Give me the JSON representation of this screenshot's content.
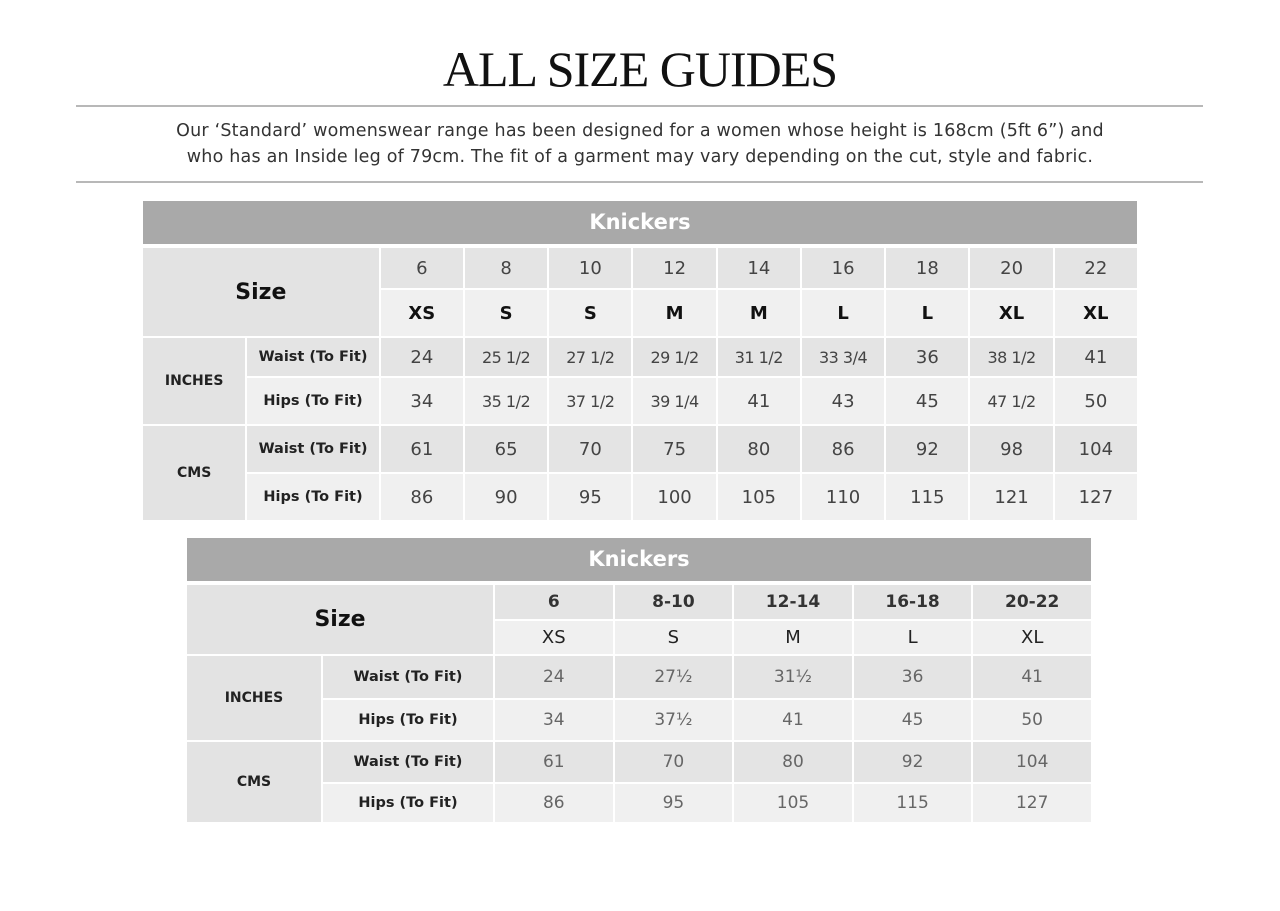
{
  "title": "ALL SIZE GUIDES",
  "intro": [
    "Our ‘Standard’ womenswear range has been designed for a women whose height is 168cm (5ft 6”) and",
    "who has an Inside leg of 79cm. The fit of a garment may vary depending on the cut, style and fabric."
  ],
  "tables": [
    {
      "title": "Knickers",
      "size_label": "Size",
      "sizes": [
        "6",
        "8",
        "10",
        "12",
        "14",
        "16",
        "18",
        "20",
        "22"
      ],
      "letters": [
        "XS",
        "S",
        "S",
        "M",
        "M",
        "L",
        "L",
        "XL",
        "XL"
      ],
      "groups": [
        {
          "name": "INCHES",
          "rows": [
            {
              "label": "Waist (To Fit)",
              "values": [
                "24",
                "25 1/2",
                "27 1/2",
                "29 1/2",
                "31 1/2",
                "33 3/4",
                "36",
                "38 1/2",
                "41"
              ]
            },
            {
              "label": "Hips (To Fit)",
              "values": [
                "34",
                "35 1/2",
                "37 1/2",
                "39 1/4",
                "41",
                "43",
                "45",
                "47 1/2",
                "50"
              ]
            }
          ]
        },
        {
          "name": "CMS",
          "rows": [
            {
              "label": "Waist (To Fit)",
              "values": [
                "61",
                "65",
                "70",
                "75",
                "80",
                "86",
                "92",
                "98",
                "104"
              ]
            },
            {
              "label": "Hips (To Fit)",
              "values": [
                "86",
                "90",
                "95",
                "100",
                "105",
                "110",
                "115",
                "121",
                "127"
              ]
            }
          ]
        }
      ]
    },
    {
      "title": "Knickers",
      "size_label": "Size",
      "sizes": [
        "6",
        "8-10",
        "12-14",
        "16-18",
        "20-22"
      ],
      "letters": [
        "XS",
        "S",
        "M",
        "L",
        "XL"
      ],
      "groups": [
        {
          "name": "INCHES",
          "rows": [
            {
              "label": "Waist (To Fit)",
              "values": [
                "24",
                "27½",
                "31½",
                "36",
                "41"
              ]
            },
            {
              "label": "Hips (To Fit)",
              "values": [
                "34",
                "37½",
                "41",
                "45",
                "50"
              ]
            }
          ]
        },
        {
          "name": "CMS",
          "rows": [
            {
              "label": "Waist (To Fit)",
              "values": [
                "61",
                "70",
                "80",
                "92",
                "104"
              ]
            },
            {
              "label": "Hips (To Fit)",
              "values": [
                "86",
                "95",
                "105",
                "115",
                "127"
              ]
            }
          ]
        }
      ]
    }
  ]
}
